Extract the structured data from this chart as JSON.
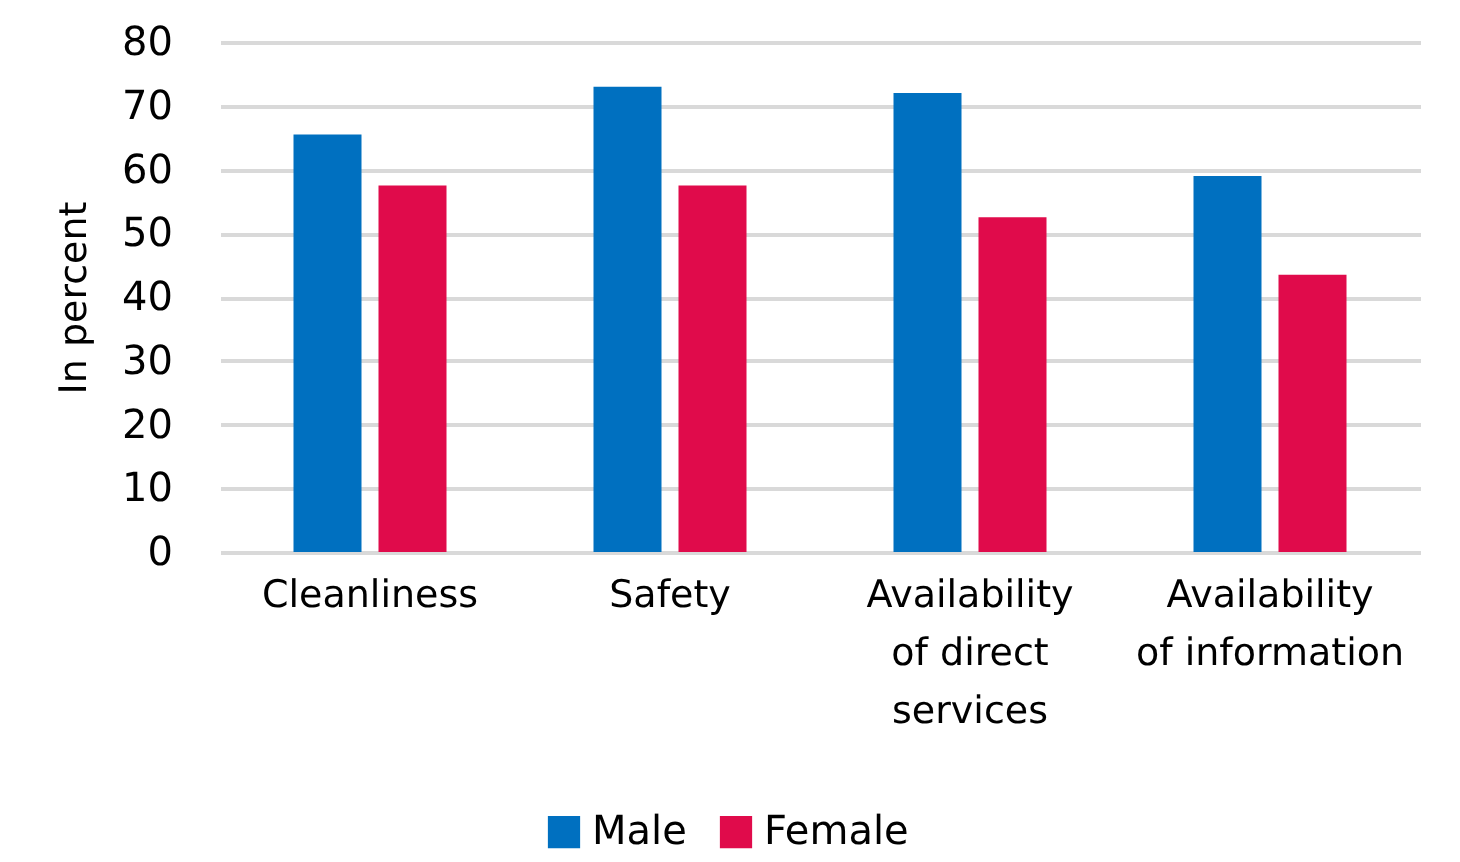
{
  "chart_data": {
    "type": "bar",
    "categories": [
      "Cleanliness",
      "Safety",
      "Availability of direct services",
      "Availability of information"
    ],
    "series": [
      {
        "name": "Male",
        "color": "#0070c0",
        "values": [
          65.5,
          73,
          72,
          59
        ]
      },
      {
        "name": "Female",
        "color": "#e00b4b",
        "values": [
          57.5,
          57.5,
          52.5,
          43.5
        ]
      }
    ],
    "ylabel": "In percent",
    "ylim": [
      0,
      80
    ],
    "yticks": [
      0,
      10,
      20,
      30,
      40,
      50,
      60,
      70,
      80
    ],
    "grid": "y",
    "legend": "bottom"
  }
}
